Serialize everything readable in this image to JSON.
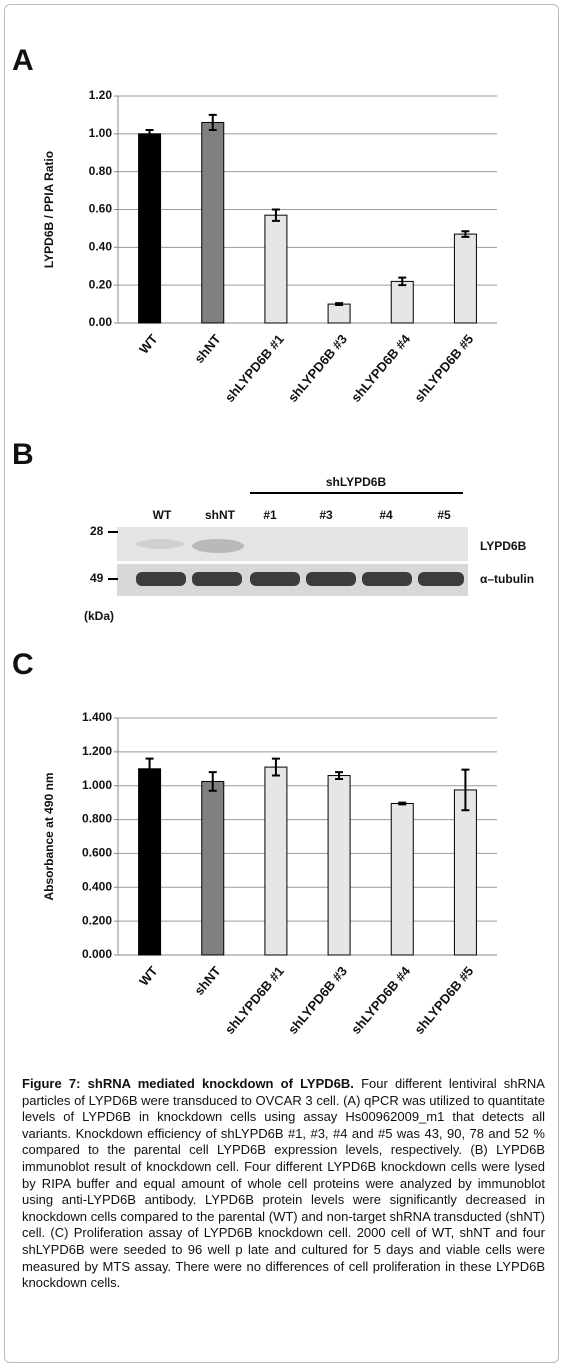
{
  "chart_data": [
    {
      "type": "bar",
      "panel": "A",
      "ylabel": "LYPD6B / PPIA Ratio",
      "categories": [
        "WT",
        "shNT",
        "shLYPD6B #1",
        "shLYPD6B #3",
        "shLYPD6B #4",
        "shLYPD6B #5"
      ],
      "values": [
        1.0,
        1.06,
        0.57,
        0.1,
        0.22,
        0.47
      ],
      "errors": [
        0.02,
        0.04,
        0.03,
        0.005,
        0.02,
        0.015
      ],
      "colors": [
        "#000000",
        "#808080",
        "#e6e6e6",
        "#e6e6e6",
        "#e6e6e6",
        "#e6e6e6"
      ],
      "ylim": [
        0,
        1.2
      ],
      "yticks": [
        {
          "value": 0,
          "label": "0.00"
        },
        {
          "value": 0.2,
          "label": "0.20"
        },
        {
          "value": 0.4,
          "label": "0.40"
        },
        {
          "value": 0.6,
          "label": "0.60"
        },
        {
          "value": 0.8,
          "label": "0.80"
        },
        {
          "value": 1,
          "label": "1.00"
        },
        {
          "value": 1.2,
          "label": "1.20"
        }
      ],
      "grid": true
    },
    {
      "type": "bar",
      "panel": "C",
      "ylabel": "Absorbance at 490 nm",
      "categories": [
        "WT",
        "shNT",
        "shLYPD6B #1",
        "shLYPD6B #3",
        "shLYPD6B #4",
        "shLYPD6B #5"
      ],
      "values": [
        1.1,
        1.025,
        1.11,
        1.06,
        0.895,
        0.975
      ],
      "errors": [
        0.06,
        0.055,
        0.05,
        0.02,
        0.005,
        0.12
      ],
      "colors": [
        "#000000",
        "#808080",
        "#e6e6e6",
        "#e6e6e6",
        "#e6e6e6",
        "#e6e6e6"
      ],
      "ylim": [
        0,
        1.4
      ],
      "yticks": [
        {
          "value": 0,
          "label": "0.000"
        },
        {
          "value": 0.2,
          "label": "0.200"
        },
        {
          "value": 0.4,
          "label": "0.400"
        },
        {
          "value": 0.6,
          "label": "0.600"
        },
        {
          "value": 0.8,
          "label": "0.800"
        },
        {
          "value": 1,
          "label": "1.000"
        },
        {
          "value": 1.2,
          "label": "1.200"
        },
        {
          "value": 1.4,
          "label": "1.400"
        }
      ],
      "grid": true
    }
  ],
  "blot": {
    "panel": "B",
    "group": "shLYPD6B",
    "lanes": [
      "WT",
      "shNT",
      "#1",
      "#3",
      "#4",
      "#5"
    ],
    "markers": [
      "28",
      "49"
    ],
    "unit": "(kDa)",
    "bands": [
      "LYPD6B",
      "α–tubulin"
    ]
  },
  "caption": {
    "title": "Figure 7: shRNA mediated knockdown of LYPD6B.",
    "text": "Four different lentiviral shRNA particles of LYPD6B were transduced to OVCAR 3 cell. (A) qPCR was utilized to quantitate levels of LYPD6B in knockdown cells using assay Hs00962009_m1 that detects all variants. Knockdown efficiency of shLYPD6B #1, #3, #4 and #5 was 43, 90, 78 and 52 % compared to the parental cell LYPD6B expression levels, respectively. (B) LYPD6B immunoblot result of knockdown cell. Four different LYPD6B knockdown cells were lysed by RIPA buffer and equal amount of whole cell proteins were analyzed by immunoblot using anti-LYPD6B antibody. LYPD6B protein levels were significantly decreased in knockdown cells compared to the parental (WT) and non-target shRNA transducted (shNT) cell. (C) Proliferation assay of LYPD6B knockdown cell. 2000 cell of WT, shNT and four shLYPD6B were seeded to 96 well p late and cultured for 5 days and viable cells were measured by MTS assay. There were no differences of cell proliferation in these LYPD6B knockdown cells."
  }
}
